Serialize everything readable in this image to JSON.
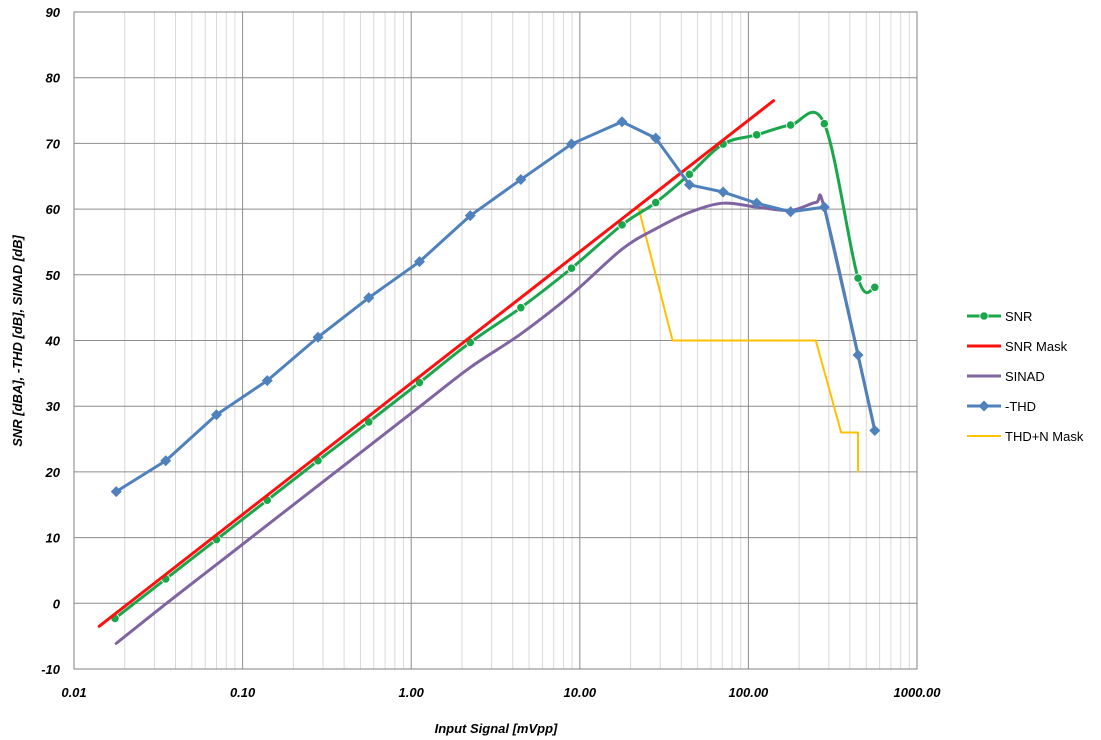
{
  "chart_data": {
    "type": "line",
    "xlabel": "Input Signal [mVpp]",
    "ylabel": "SNR [dBA], -THD [dB], SINAD [dB]",
    "xscale": "log",
    "xlim": [
      0.01,
      1000
    ],
    "ylim": [
      -10,
      90
    ],
    "x_ticks": [
      "0.01",
      "0.10",
      "1.00",
      "10.00",
      "100.00",
      "1000.00"
    ],
    "y_ticks": [
      "-10",
      "0",
      "10",
      "20",
      "30",
      "40",
      "50",
      "60",
      "70",
      "80",
      "90"
    ],
    "grid": true,
    "legend_position": "right",
    "series": [
      {
        "name": "SNR",
        "color": "#1aa64a",
        "marker": "circle",
        "smooth": true,
        "points": [
          [
            0.0175,
            -2.3
          ],
          [
            0.035,
            3.7
          ],
          [
            0.07,
            9.7
          ],
          [
            0.14,
            15.7
          ],
          [
            0.28,
            21.7
          ],
          [
            0.56,
            27.6
          ],
          [
            1.12,
            33.6
          ],
          [
            2.24,
            39.7
          ],
          [
            4.47,
            45.0
          ],
          [
            8.93,
            51.0
          ],
          [
            17.8,
            57.6
          ],
          [
            28.2,
            61.0
          ],
          [
            44.7,
            65.3
          ],
          [
            70.8,
            69.9
          ],
          [
            112,
            71.3
          ],
          [
            178,
            72.8
          ],
          [
            282,
            73.0
          ],
          [
            447,
            49.5
          ],
          [
            562,
            48.1
          ]
        ]
      },
      {
        "name": "SNR Mask",
        "color": "#ff1010",
        "marker": "none",
        "smooth": false,
        "points": [
          [
            0.0141,
            -3.5
          ],
          [
            141,
            76.5
          ]
        ]
      },
      {
        "name": "SINAD",
        "color": "#8064a2",
        "marker": "none",
        "smooth": true,
        "points": [
          [
            0.0178,
            -6.1
          ],
          [
            0.035,
            -0.1
          ],
          [
            0.07,
            5.9
          ],
          [
            0.14,
            11.9
          ],
          [
            0.28,
            17.9
          ],
          [
            0.56,
            23.9
          ],
          [
            1.12,
            29.9
          ],
          [
            2.24,
            35.9
          ],
          [
            4.47,
            41.0
          ],
          [
            8.93,
            47.0
          ],
          [
            17.8,
            53.9
          ],
          [
            28.2,
            57.0
          ],
          [
            44.7,
            59.5
          ],
          [
            70.8,
            60.9
          ],
          [
            112,
            60.3
          ],
          [
            178,
            59.8
          ],
          [
            251,
            61.0
          ],
          [
            282,
            60.2
          ],
          [
            447,
            37.8
          ],
          [
            562,
            26.3
          ]
        ]
      },
      {
        "name": "-THD",
        "color": "#4f81bd",
        "marker": "diamond",
        "smooth": false,
        "points": [
          [
            0.0178,
            17.0
          ],
          [
            0.035,
            21.7
          ],
          [
            0.07,
            28.7
          ],
          [
            0.14,
            33.9
          ],
          [
            0.28,
            40.5
          ],
          [
            0.56,
            46.5
          ],
          [
            1.12,
            52.0
          ],
          [
            2.24,
            59.0
          ],
          [
            4.47,
            64.5
          ],
          [
            8.93,
            69.9
          ],
          [
            17.8,
            73.3
          ],
          [
            28.2,
            70.8
          ],
          [
            44.7,
            63.7
          ],
          [
            70.8,
            62.6
          ],
          [
            112,
            60.9
          ],
          [
            178,
            59.6
          ],
          [
            282,
            60.3
          ],
          [
            447,
            37.8
          ],
          [
            562,
            26.3
          ]
        ]
      },
      {
        "name": "THD+N Mask",
        "color": "#ffc000",
        "marker": "none",
        "smooth": false,
        "points": [
          [
            22.4,
            60.0
          ],
          [
            35.5,
            40.0
          ],
          [
            251,
            40.0
          ],
          [
            355,
            26.0
          ],
          [
            447,
            26.0
          ],
          [
            447,
            20.0
          ]
        ]
      }
    ]
  }
}
